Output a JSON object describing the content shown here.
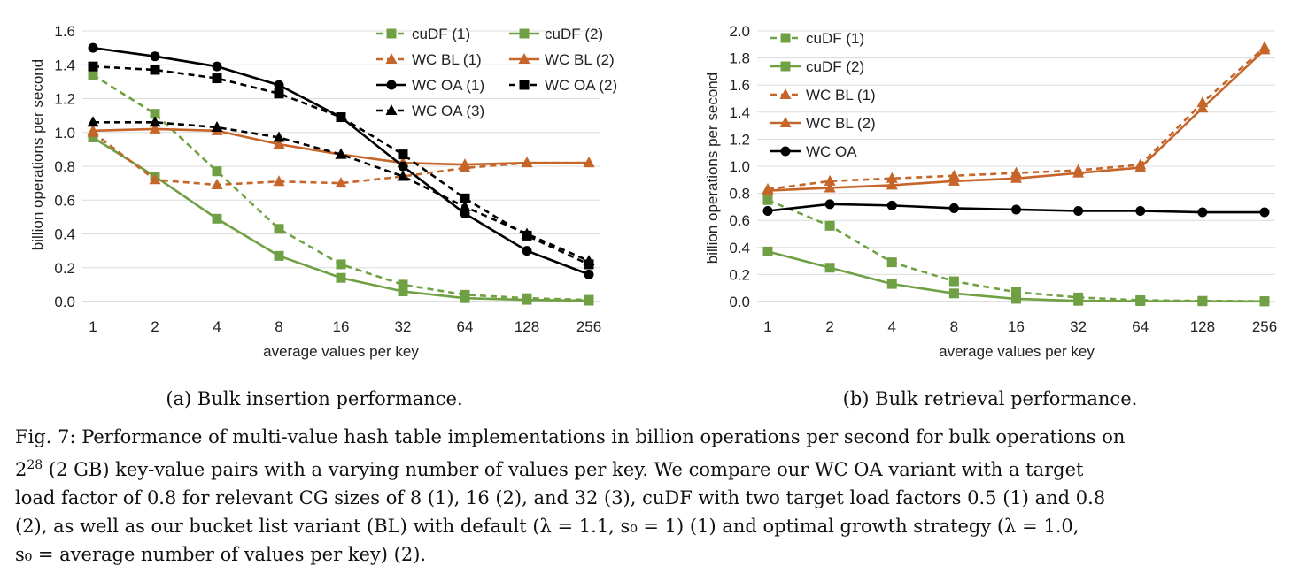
{
  "chart_data": [
    {
      "type": "line",
      "id": "a",
      "subcaption": "(a) Bulk insertion performance.",
      "xlabel": "average values per key",
      "ylabel": "billion operations per second",
      "categories": [
        "1",
        "2",
        "4",
        "8",
        "16",
        "32",
        "64",
        "128",
        "256"
      ],
      "ylim": [
        0,
        1.6
      ],
      "yticks": [
        "0.0",
        "0.2",
        "0.4",
        "0.6",
        "0.8",
        "1.0",
        "1.2",
        "1.4",
        "1.6"
      ],
      "legend_position": "top-right",
      "series": [
        {
          "name": "cuDF (1)",
          "color": "#70a044",
          "dash": true,
          "marker": "square",
          "values": [
            1.34,
            1.11,
            0.77,
            0.43,
            0.22,
            0.1,
            0.04,
            0.02,
            0.01
          ]
        },
        {
          "name": "cuDF (2)",
          "color": "#70a044",
          "dash": false,
          "marker": "square",
          "values": [
            0.97,
            0.74,
            0.49,
            0.27,
            0.14,
            0.06,
            0.02,
            0.01,
            0.005
          ]
        },
        {
          "name": "WC BL (1)",
          "color": "#c5652a",
          "dash": true,
          "marker": "triangle",
          "values": [
            1.0,
            0.72,
            0.69,
            0.71,
            0.7,
            0.74,
            0.79,
            0.82,
            0.82
          ]
        },
        {
          "name": "WC BL (2)",
          "color": "#c5652a",
          "dash": false,
          "marker": "triangle",
          "values": [
            1.01,
            1.02,
            1.01,
            0.93,
            0.87,
            0.82,
            0.81,
            0.82,
            0.82
          ]
        },
        {
          "name": "WC OA (1)",
          "color": "#000000",
          "dash": false,
          "marker": "circle",
          "values": [
            1.5,
            1.45,
            1.39,
            1.28,
            1.09,
            0.8,
            0.52,
            0.3,
            0.16
          ]
        },
        {
          "name": "WC OA (2)",
          "color": "#000000",
          "dash": true,
          "marker": "square",
          "values": [
            1.39,
            1.37,
            1.32,
            1.23,
            1.09,
            0.87,
            0.61,
            0.39,
            0.22
          ]
        },
        {
          "name": "WC OA (3)",
          "color": "#000000",
          "dash": true,
          "marker": "triangle",
          "values": [
            1.06,
            1.06,
            1.03,
            0.97,
            0.87,
            0.74,
            0.56,
            0.4,
            0.24
          ]
        }
      ]
    },
    {
      "type": "line",
      "id": "b",
      "subcaption": "(b) Bulk retrieval performance.",
      "xlabel": "average values per key",
      "ylabel": "billion operations per second",
      "categories": [
        "1",
        "2",
        "4",
        "8",
        "16",
        "32",
        "64",
        "128",
        "256"
      ],
      "ylim": [
        0,
        2.0
      ],
      "yticks": [
        "0.0",
        "0.2",
        "0.4",
        "0.6",
        "0.8",
        "1.0",
        "1.2",
        "1.4",
        "1.6",
        "1.8",
        "2.0"
      ],
      "legend_position": "top-left",
      "series": [
        {
          "name": "cuDF (1)",
          "color": "#70a044",
          "dash": true,
          "marker": "square",
          "values": [
            0.75,
            0.56,
            0.29,
            0.15,
            0.07,
            0.03,
            0.01,
            0.005,
            0.003
          ]
        },
        {
          "name": "cuDF (2)",
          "color": "#70a044",
          "dash": false,
          "marker": "square",
          "values": [
            0.37,
            0.25,
            0.13,
            0.06,
            0.02,
            0.005,
            0.003,
            0.002,
            0.001
          ]
        },
        {
          "name": "WC BL (1)",
          "color": "#c5652a",
          "dash": true,
          "marker": "triangle",
          "values": [
            0.83,
            0.89,
            0.91,
            0.93,
            0.95,
            0.97,
            1.01,
            1.47,
            1.88
          ]
        },
        {
          "name": "WC BL (2)",
          "color": "#c5652a",
          "dash": false,
          "marker": "triangle",
          "values": [
            0.82,
            0.84,
            0.86,
            0.89,
            0.91,
            0.95,
            0.99,
            1.43,
            1.86
          ]
        },
        {
          "name": "WC OA",
          "color": "#000000",
          "dash": false,
          "marker": "circle",
          "values": [
            0.67,
            0.72,
            0.71,
            0.69,
            0.68,
            0.67,
            0.67,
            0.66,
            0.66
          ]
        }
      ]
    }
  ],
  "caption": {
    "line1": "Fig. 7: Performance of multi-value hash table implementations in billion operations per second for bulk operations on",
    "line2_base": "2",
    "line2_exp": "28",
    "line2_rest": " (2 GB) key-value pairs with a varying number of values per key. We compare our WC OA variant with a target",
    "line3": "load factor of 0.8 for relevant CG sizes of 8 (1), 16 (2), and 32 (3), cuDF with two target load factors 0.5 (1) and 0.8",
    "line4": "(2), as well as our bucket list variant (BL) with default (λ = 1.1, s₀ = 1) (1) and optimal growth strategy (λ = 1.0,",
    "line5": "s₀ = average number of values per key) (2)."
  }
}
